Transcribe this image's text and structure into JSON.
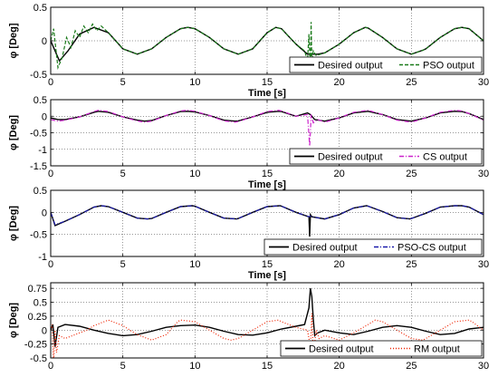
{
  "chart_data": [
    {
      "type": "line",
      "xlabel": "Time [s]",
      "ylabel": "φ [Deg]",
      "xlim": [
        0,
        30
      ],
      "ylim": [
        -0.5,
        0.5
      ],
      "xticks": [
        0,
        5,
        10,
        15,
        20,
        25,
        30
      ],
      "yticks": [
        -0.5,
        0,
        0.5
      ],
      "grid": true,
      "legend_position": "bottom-right",
      "series": [
        {
          "name": "Desired output",
          "color": "#000000",
          "style": "solid",
          "x": [
            0,
            0.6,
            1.2,
            2,
            3,
            4,
            5,
            6,
            7,
            8,
            9,
            9.5,
            10,
            11,
            12,
            13,
            14,
            15,
            15.6,
            16,
            17,
            17.8,
            18,
            18.5,
            19,
            20,
            21,
            21.8,
            22,
            23,
            24,
            25,
            25.8,
            26,
            27,
            28,
            28.5,
            29,
            30
          ],
          "y": [
            0,
            -0.3,
            -0.15,
            0.1,
            0.2,
            0.12,
            -0.12,
            -0.2,
            -0.12,
            0.05,
            0.18,
            0.2,
            0.18,
            0.05,
            -0.12,
            -0.2,
            -0.12,
            0.12,
            0.2,
            0.18,
            -0.05,
            -0.2,
            -0.2,
            -0.2,
            -0.18,
            -0.05,
            0.12,
            0.2,
            0.19,
            0.05,
            -0.12,
            -0.2,
            -0.14,
            -0.12,
            0.05,
            0.18,
            0.2,
            0.18,
            0
          ]
        },
        {
          "name": "PSO output",
          "color": "#1a7a1a",
          "style": "dashed",
          "x": [
            0,
            0.2,
            0.5,
            0.8,
            1.1,
            1.4,
            1.7,
            2,
            2.3,
            2.6,
            2.9,
            3.2,
            3.5,
            4,
            5,
            6,
            7,
            8,
            9,
            9.5,
            10,
            11,
            12,
            13,
            14,
            15,
            15.6,
            16,
            17,
            17.6,
            17.8,
            17.9,
            18,
            18.05,
            18.1,
            18.2,
            18.4,
            19,
            20,
            21,
            21.8,
            22,
            23,
            24,
            25,
            25.8,
            26,
            27,
            28,
            28.5,
            29,
            30
          ],
          "y": [
            0,
            0.18,
            -0.4,
            -0.25,
            0.05,
            -0.1,
            0.15,
            0.05,
            0.22,
            0.12,
            0.25,
            0.15,
            0.22,
            0.12,
            -0.12,
            -0.2,
            -0.12,
            0.05,
            0.18,
            0.2,
            0.18,
            0.05,
            -0.12,
            -0.2,
            -0.12,
            0.12,
            0.2,
            0.18,
            -0.05,
            -0.15,
            -0.3,
            0.1,
            -0.45,
            0.28,
            -0.35,
            -0.15,
            -0.22,
            -0.18,
            -0.05,
            0.12,
            0.2,
            0.19,
            0.05,
            -0.12,
            -0.2,
            -0.14,
            -0.12,
            0.05,
            0.18,
            0.2,
            0.18,
            0
          ]
        }
      ]
    },
    {
      "type": "line",
      "xlabel": "Time [s]",
      "ylabel": "φ [Deg]",
      "xlim": [
        0,
        30
      ],
      "ylim": [
        -1.5,
        0.5
      ],
      "xticks": [
        0,
        5,
        10,
        15,
        20,
        25,
        30
      ],
      "yticks": [
        -1.5,
        -1,
        -0.5,
        0,
        0.5
      ],
      "grid": true,
      "legend_position": "bottom-right",
      "series": [
        {
          "name": "Desired output",
          "color": "#000000",
          "style": "solid",
          "x": [
            0,
            0.5,
            1,
            2,
            3,
            3.3,
            4,
            5,
            6,
            6.5,
            7,
            8,
            9,
            9.5,
            10,
            11,
            12,
            12.8,
            13,
            14,
            15,
            15.8,
            16,
            17,
            17.8,
            18,
            18.3,
            19,
            20,
            21,
            22,
            23,
            24,
            25,
            26,
            27,
            28,
            28.5,
            29,
            30
          ],
          "y": [
            -0.05,
            -0.1,
            -0.1,
            -0.02,
            0.12,
            0.15,
            0.12,
            -0.02,
            -0.12,
            -0.15,
            -0.13,
            0.02,
            0.14,
            0.15,
            0.13,
            0.02,
            -0.12,
            -0.15,
            -0.14,
            -0.02,
            0.12,
            0.15,
            0.14,
            0.0,
            0.1,
            0.05,
            -0.1,
            -0.15,
            -0.05,
            0.1,
            0.15,
            0.05,
            -0.1,
            -0.15,
            -0.05,
            0.1,
            0.15,
            0.14,
            0.08,
            -0.1
          ]
        },
        {
          "name": "CS output",
          "color": "#cc22cc",
          "style": "dashdot",
          "x": [
            0,
            0.5,
            1,
            2,
            3,
            3.3,
            4,
            5,
            6,
            6.5,
            7,
            8,
            9,
            9.5,
            10,
            11,
            12,
            12.8,
            13,
            14,
            15,
            15.8,
            16,
            17,
            17.8,
            17.95,
            18,
            18.05,
            18.2,
            18.5,
            19,
            20,
            21,
            22,
            23,
            24,
            25,
            26,
            27,
            28,
            28.5,
            29,
            30
          ],
          "y": [
            -0.1,
            -0.15,
            -0.12,
            -0.02,
            0.14,
            0.18,
            0.14,
            -0.02,
            -0.14,
            -0.18,
            -0.15,
            0.02,
            0.16,
            0.18,
            0.15,
            0.02,
            -0.14,
            -0.18,
            -0.16,
            -0.02,
            0.14,
            0.18,
            0.16,
            0.0,
            0.05,
            -0.9,
            -0.5,
            0.05,
            -0.2,
            -0.1,
            -0.18,
            -0.05,
            0.12,
            0.18,
            0.05,
            -0.12,
            -0.18,
            -0.05,
            0.12,
            0.18,
            0.16,
            0.08,
            -0.12
          ]
        }
      ]
    },
    {
      "type": "line",
      "xlabel": "Time [s]",
      "ylabel": "φ [Deg]",
      "xlim": [
        0,
        30
      ],
      "ylim": [
        -1,
        0.5
      ],
      "xticks": [
        0,
        5,
        10,
        15,
        20,
        25,
        30
      ],
      "yticks": [
        -1,
        -0.5,
        0,
        0.5
      ],
      "grid": true,
      "legend_position": "bottom-right",
      "series": [
        {
          "name": "Desired output",
          "color": "#000000",
          "style": "solid",
          "x": [
            0,
            0.3,
            1,
            2,
            3,
            3.5,
            4,
            5,
            6,
            6.7,
            7,
            8,
            9,
            9.8,
            10,
            11,
            12,
            12.9,
            13,
            14,
            15,
            15.9,
            16,
            17,
            17.9,
            17.95,
            18,
            18.1,
            19,
            20,
            21,
            21.9,
            22,
            23,
            24,
            24.9,
            25,
            26,
            27,
            28,
            28.5,
            29,
            30
          ],
          "y": [
            0,
            -0.3,
            -0.2,
            -0.05,
            0.12,
            0.15,
            0.13,
            0.0,
            -0.13,
            -0.15,
            -0.14,
            0.0,
            0.13,
            0.15,
            0.14,
            0.0,
            -0.13,
            -0.15,
            -0.14,
            0.0,
            0.13,
            0.15,
            0.14,
            0.0,
            -0.1,
            -0.55,
            -0.05,
            -0.1,
            -0.15,
            -0.05,
            0.1,
            0.15,
            0.14,
            0.02,
            -0.12,
            -0.15,
            -0.14,
            -0.02,
            0.12,
            0.15,
            0.15,
            0.12,
            -0.05
          ]
        },
        {
          "name": "PSO-CS output",
          "color": "#1a1aaa",
          "style": "dashdot",
          "x": [
            0,
            0.3,
            1,
            2,
            3,
            3.5,
            4,
            5,
            6,
            6.7,
            7,
            8,
            9,
            9.8,
            10,
            11,
            12,
            12.9,
            13,
            14,
            15,
            15.9,
            16,
            17,
            17.9,
            18,
            18.1,
            19,
            20,
            21,
            21.9,
            22,
            23,
            24,
            24.9,
            25,
            26,
            27,
            28,
            28.5,
            29,
            30
          ],
          "y": [
            0,
            -0.28,
            -0.2,
            -0.05,
            0.12,
            0.15,
            0.13,
            0.0,
            -0.13,
            -0.15,
            -0.14,
            0.0,
            0.13,
            0.15,
            0.14,
            0.0,
            -0.13,
            -0.15,
            -0.14,
            0.0,
            0.13,
            0.15,
            0.14,
            0.0,
            -0.1,
            -0.08,
            -0.1,
            -0.15,
            -0.05,
            0.1,
            0.15,
            0.14,
            0.02,
            -0.12,
            -0.15,
            -0.14,
            -0.02,
            0.12,
            0.15,
            0.15,
            0.12,
            -0.05
          ]
        }
      ]
    },
    {
      "type": "line",
      "xlabel": "",
      "ylabel": "φ [Deg]",
      "xlim": [
        0,
        30
      ],
      "ylim": [
        -0.5,
        0.85
      ],
      "xticks": [
        0,
        5,
        10,
        15,
        20,
        25,
        30
      ],
      "yticks": [
        -0.5,
        -0.25,
        0,
        0.25,
        0.5,
        0.75
      ],
      "grid": true,
      "legend_position": "bottom-right",
      "series": [
        {
          "name": "Desired output",
          "color": "#000000",
          "style": "solid",
          "x": [
            0,
            0.15,
            0.3,
            0.5,
            1,
            2,
            3,
            4,
            5,
            6,
            7,
            8,
            9,
            10,
            11,
            12,
            13,
            14,
            15,
            16,
            17,
            17.6,
            17.9,
            18.0,
            18.1,
            18.2,
            18.3,
            18.5,
            19,
            20,
            21,
            22,
            23,
            24,
            25,
            26,
            27,
            28,
            29,
            30
          ],
          "y": [
            0,
            0.1,
            -0.3,
            0.05,
            0.1,
            0.07,
            0.0,
            -0.06,
            -0.1,
            -0.08,
            -0.02,
            0.05,
            0.08,
            0.09,
            0.05,
            -0.02,
            -0.08,
            -0.09,
            -0.05,
            0.02,
            0.07,
            0.1,
            0.4,
            0.75,
            0.6,
            0.2,
            -0.1,
            -0.05,
            0.0,
            -0.05,
            -0.08,
            -0.02,
            0.05,
            0.08,
            0.05,
            -0.02,
            -0.08,
            -0.06,
            0.02,
            0.05
          ]
        },
        {
          "name": "RM output",
          "color": "#ee2200",
          "style": "dotted",
          "x": [
            0,
            0.1,
            0.2,
            0.3,
            0.4,
            0.6,
            1,
            2,
            2.5,
            3,
            4,
            5,
            5.5,
            6,
            7,
            8,
            8.8,
            9,
            10,
            11,
            12,
            12.5,
            13,
            14,
            15,
            15.8,
            16,
            17,
            17.8,
            18.0,
            18.1,
            18.2,
            18.4,
            18.6,
            19,
            20,
            21,
            22,
            22.5,
            23,
            24,
            25,
            25.8,
            26,
            27,
            28,
            29,
            29.2,
            30
          ],
          "y": [
            0,
            0.1,
            -0.6,
            0.0,
            -0.4,
            -0.1,
            -0.15,
            -0.05,
            0.0,
            0.08,
            0.18,
            0.08,
            0.0,
            -0.08,
            -0.18,
            -0.08,
            0.15,
            0.18,
            0.15,
            0.0,
            -0.15,
            -0.18,
            -0.15,
            0.0,
            0.15,
            0.18,
            0.15,
            0.05,
            0.0,
            -0.3,
            0.3,
            -0.45,
            0.0,
            -0.15,
            -0.1,
            -0.18,
            -0.05,
            0.1,
            0.18,
            0.15,
            0.0,
            -0.15,
            -0.18,
            -0.15,
            0.0,
            0.15,
            0.18,
            0.15,
            0.0
          ]
        }
      ]
    }
  ]
}
